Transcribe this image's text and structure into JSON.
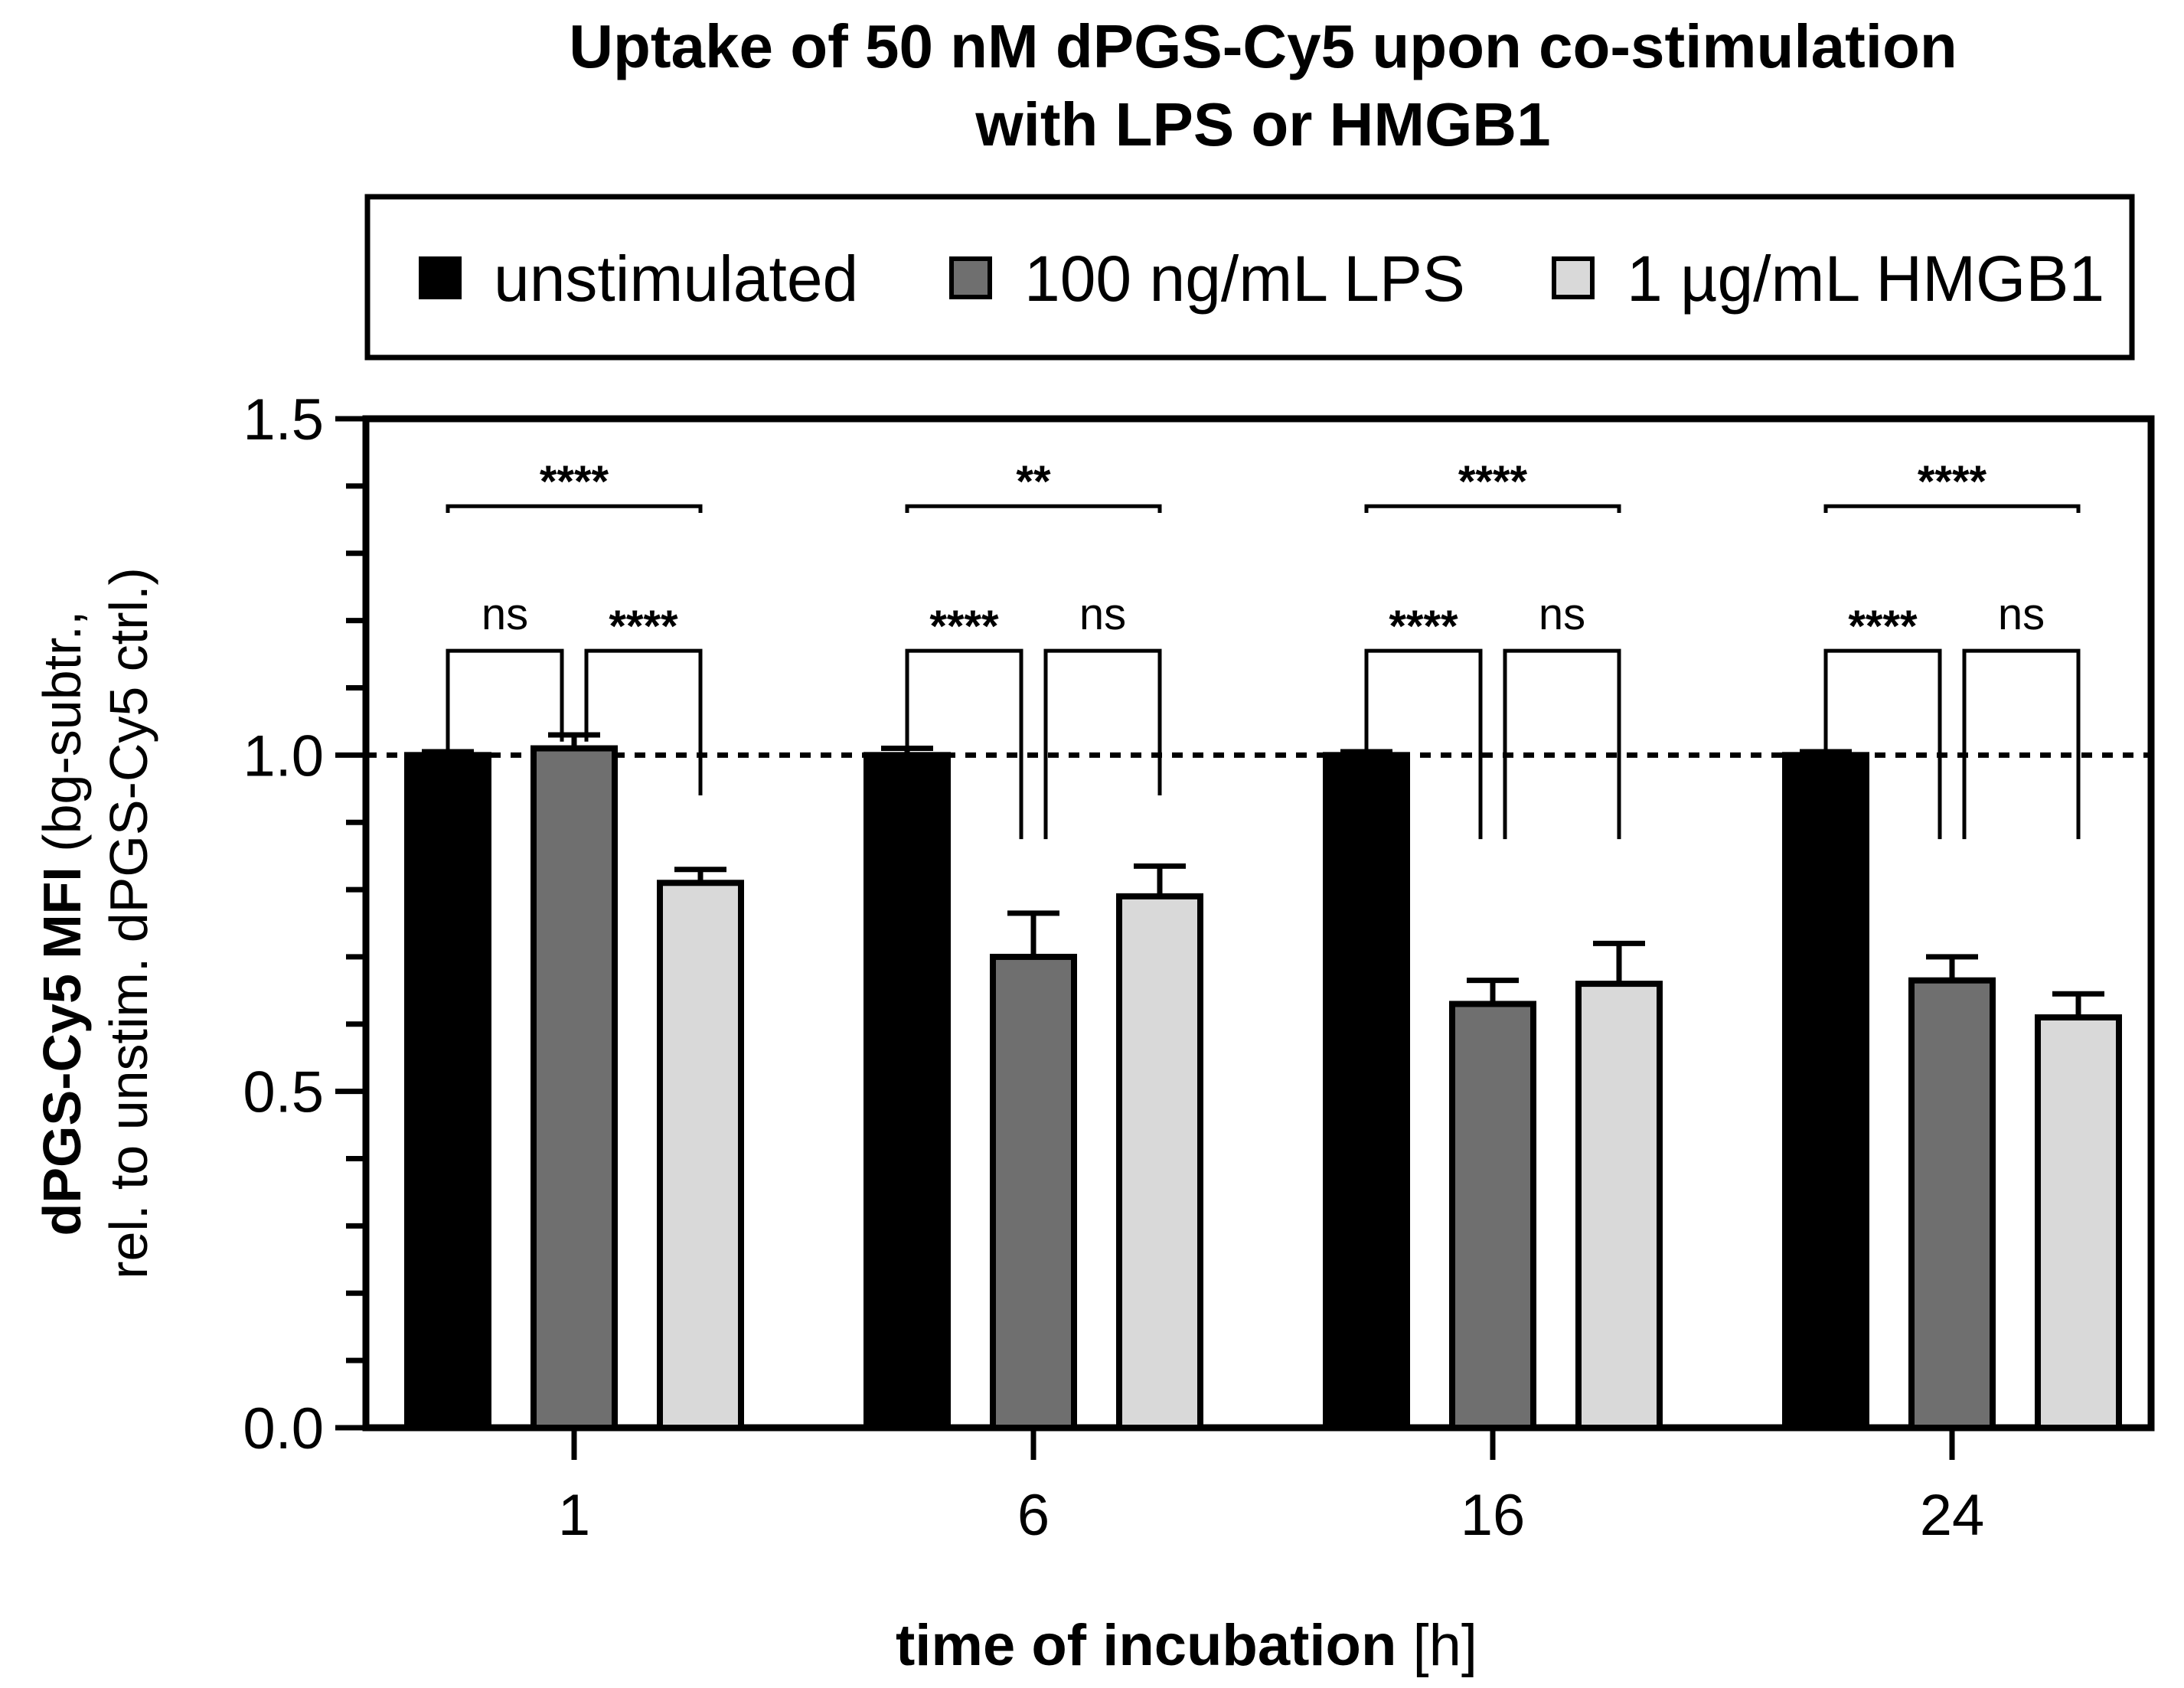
{
  "chart_data": {
    "type": "bar",
    "title_lines": [
      "Uptake of 50 nM dPGS-Cy5 upon co-stimulation",
      "with LPS or HMGB1"
    ],
    "xlabel_main": "time of incubation",
    "xlabel_unit": "[h]",
    "ylabel_line1_bold": "dPGS-Cy5 MFI",
    "ylabel_line1_rest": "(bg-subtr.,",
    "ylabel_line2": "rel. to unstim. dPGS-Cy5 ctrl.)",
    "ylim": [
      0,
      1.5
    ],
    "yticks": [
      0.0,
      0.5,
      1.0,
      1.5
    ],
    "ytick_labels": [
      "0.0",
      "0.5",
      "1.0",
      "1.5"
    ],
    "minor_tick_step": 0.1,
    "reference_line": 1.0,
    "categories": [
      "1",
      "6",
      "16",
      "24"
    ],
    "series": [
      {
        "name": "unstimulated",
        "color": "#000000",
        "values": [
          1.0,
          1.0,
          1.0,
          1.0
        ],
        "errors": [
          0.005,
          0.01,
          0.005,
          0.005
        ]
      },
      {
        "name": "100 ng/mL LPS",
        "color": "#6f6f6f",
        "values": [
          1.01,
          0.7,
          0.63,
          0.665
        ],
        "errors": [
          0.02,
          0.065,
          0.035,
          0.035
        ]
      },
      {
        "name": "1 µg/mL HMGB1",
        "color": "#d9d9d9",
        "values": [
          0.81,
          0.79,
          0.66,
          0.61
        ],
        "errors": [
          0.02,
          0.045,
          0.06,
          0.035
        ]
      }
    ],
    "significance": [
      {
        "group": "1",
        "pair": [
          0,
          2
        ],
        "label": "****",
        "top": 1.37,
        "ends": [
          1.36,
          1.36
        ]
      },
      {
        "group": "1",
        "pair": [
          0,
          1
        ],
        "label": "ns",
        "top": 1.155,
        "ends": [
          1.0,
          1.02
        ]
      },
      {
        "group": "1",
        "pair": [
          1,
          2
        ],
        "label": "****",
        "top": 1.155,
        "ends": [
          1.02,
          0.94
        ]
      },
      {
        "group": "6",
        "pair": [
          0,
          2
        ],
        "label": "**",
        "top": 1.37,
        "ends": [
          1.36,
          1.36
        ]
      },
      {
        "group": "6",
        "pair": [
          0,
          1
        ],
        "label": "****",
        "top": 1.155,
        "ends": [
          1.0,
          0.875
        ]
      },
      {
        "group": "6",
        "pair": [
          1,
          2
        ],
        "label": "ns",
        "top": 1.155,
        "ends": [
          0.875,
          0.94
        ]
      },
      {
        "group": "16",
        "pair": [
          0,
          2
        ],
        "label": "****",
        "top": 1.37,
        "ends": [
          1.36,
          1.36
        ]
      },
      {
        "group": "16",
        "pair": [
          0,
          1
        ],
        "label": "****",
        "top": 1.155,
        "ends": [
          1.0,
          0.875
        ]
      },
      {
        "group": "16",
        "pair": [
          1,
          2
        ],
        "label": "ns",
        "top": 1.155,
        "ends": [
          0.875,
          0.875
        ]
      },
      {
        "group": "24",
        "pair": [
          0,
          2
        ],
        "label": "****",
        "top": 1.37,
        "ends": [
          1.36,
          1.36
        ]
      },
      {
        "group": "24",
        "pair": [
          0,
          1
        ],
        "label": "****",
        "top": 1.155,
        "ends": [
          1.0,
          0.875
        ]
      },
      {
        "group": "24",
        "pair": [
          1,
          2
        ],
        "label": "ns",
        "top": 1.155,
        "ends": [
          0.875,
          0.875
        ]
      }
    ],
    "legend": {
      "position": "top",
      "entries": [
        {
          "label": "unstimulated",
          "color": "#000000"
        },
        {
          "label": "100 ng/mL LPS",
          "color": "#6f6f6f"
        },
        {
          "label": "1 µg/mL HMGB1",
          "color": "#d9d9d9"
        }
      ]
    }
  }
}
